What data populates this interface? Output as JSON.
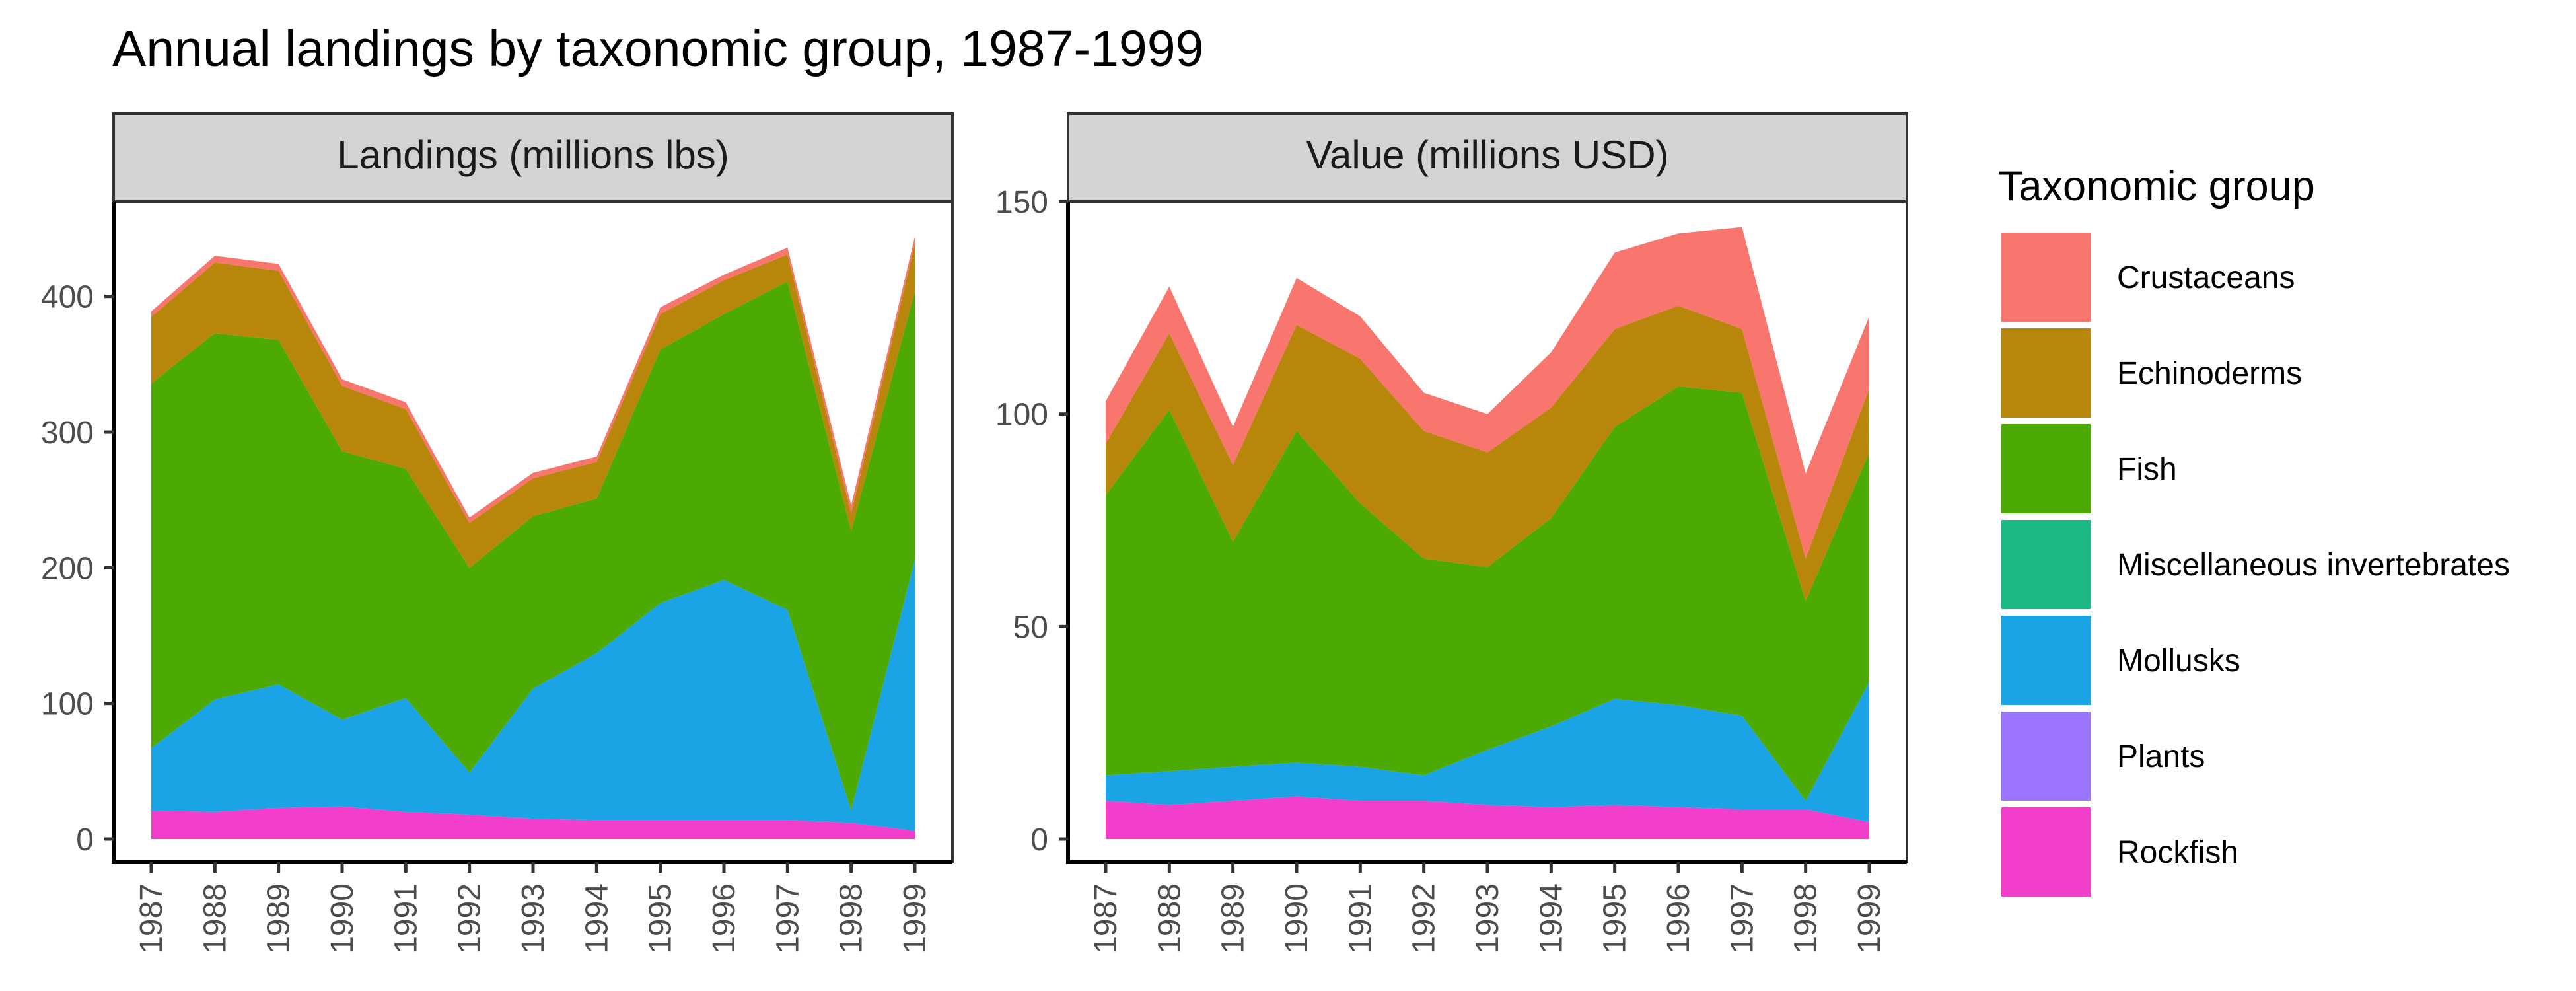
{
  "chart_data": {
    "type": "area",
    "title": "Annual landings by taxonomic group, 1987-1999",
    "x": [
      1987,
      1988,
      1989,
      1990,
      1991,
      1992,
      1993,
      1994,
      1995,
      1996,
      1997,
      1998,
      1999
    ],
    "x_tick_labels": [
      "1987",
      "1988",
      "1989",
      "1990",
      "1991",
      "1992",
      "1993",
      "1994",
      "1995",
      "1996",
      "1997",
      "1998",
      "1999"
    ],
    "stacked": true,
    "grid": false,
    "legend": {
      "title": "Taxonomic group",
      "position": "right",
      "entries": [
        {
          "name": "Crustaceans",
          "color": "#F8766D"
        },
        {
          "name": "Echinoderms",
          "color": "#B8860B"
        },
        {
          "name": "Fish",
          "color": "#4DAA05"
        },
        {
          "name": "Miscellaneous invertebrates",
          "color": "#1BB886"
        },
        {
          "name": "Mollusks",
          "color": "#1AA4E6"
        },
        {
          "name": "Plants",
          "color": "#9B74FF"
        },
        {
          "name": "Rockfish",
          "color": "#F23FCB"
        }
      ]
    },
    "panels": [
      {
        "strip_label": "Landings (millions lbs)",
        "ylim": [
          0,
          470
        ],
        "y_ticks": [
          0,
          100,
          200,
          300,
          400
        ],
        "y_tick_labels": [
          "0",
          "100",
          "200",
          "300",
          "400"
        ],
        "series": [
          {
            "name": "Rockfish",
            "values": [
              21,
              20,
              23,
              24,
              20,
              18,
              15,
              14,
              14,
              14,
              14,
              12,
              6
            ]
          },
          {
            "name": "Plants",
            "values": [
              0,
              0,
              0,
              0,
              0,
              0,
              0,
              0,
              0,
              0,
              0,
              0,
              0
            ]
          },
          {
            "name": "Mollusks",
            "values": [
              46,
              83,
              91,
              64,
              84,
              31,
              96,
              123,
              160,
              177,
              155,
              9,
              200
            ]
          },
          {
            "name": "Miscellaneous invertebrates",
            "values": [
              0,
              0,
              0,
              0,
              0,
              0,
              0,
              0,
              0,
              0,
              0,
              0,
              0
            ]
          },
          {
            "name": "Fish",
            "values": [
              269,
              270,
              254,
              198,
              169,
              151,
              127,
              114,
              187,
              196,
              242,
              206,
              198
            ]
          },
          {
            "name": "Echinoderms",
            "values": [
              49,
              52,
              51,
              48,
              44,
              33,
              28,
              27,
              26,
              25,
              20,
              13,
              35
            ]
          },
          {
            "name": "Crustaceans",
            "values": [
              4,
              5,
              5,
              5,
              5,
              4,
              4,
              4,
              5,
              4,
              5,
              6,
              5
            ]
          }
        ]
      },
      {
        "strip_label": "Value (millions USD)",
        "ylim": [
          0,
          150
        ],
        "y_ticks": [
          0,
          50,
          100,
          150
        ],
        "y_tick_labels": [
          "0",
          "50",
          "100",
          "150"
        ],
        "series": [
          {
            "name": "Rockfish",
            "values": [
              9,
              8,
              9,
              10,
              9,
              9,
              8,
              7.5,
              8,
              7.5,
              7,
              7,
              4
            ]
          },
          {
            "name": "Plants",
            "values": [
              0,
              0,
              0,
              0,
              0,
              0,
              0,
              0,
              0,
              0,
              0,
              0,
              0
            ]
          },
          {
            "name": "Mollusks",
            "values": [
              6,
              8,
              8,
              8,
              8,
              6,
              13,
              19,
              25,
              24,
              22,
              2,
              33
            ]
          },
          {
            "name": "Miscellaneous invertebrates",
            "values": [
              0,
              0,
              0,
              0,
              0,
              0,
              0,
              0,
              0,
              0,
              0,
              0,
              0
            ]
          },
          {
            "name": "Fish",
            "values": [
              66,
              85,
              53,
              78,
              62,
              51,
              43,
              49,
              64,
              75,
              76,
              47,
              54
            ]
          },
          {
            "name": "Echinoderms",
            "values": [
              12,
              18,
              18,
              25,
              34,
              30,
              27,
              26,
              23,
              19,
              15,
              10,
              15
            ]
          },
          {
            "name": "Crustaceans",
            "values": [
              10,
              11,
              9,
              11,
              10,
              9,
              9,
              13,
              18,
              17,
              24,
              20,
              17
            ]
          }
        ]
      }
    ]
  }
}
